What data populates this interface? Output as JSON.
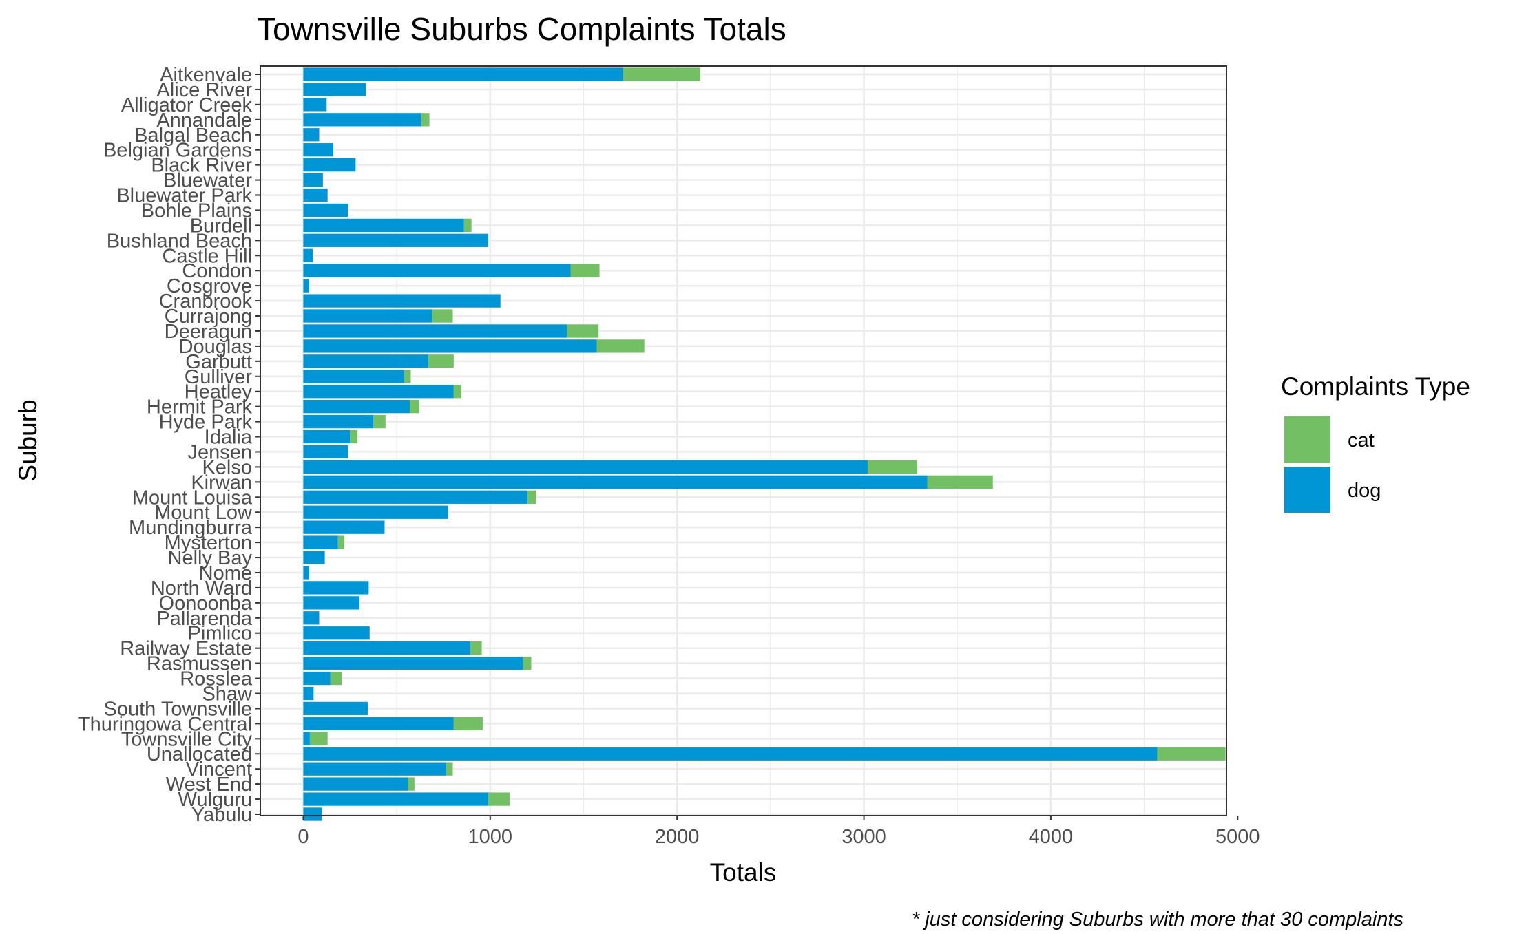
{
  "chart_data": {
    "type": "bar",
    "orientation": "horizontal",
    "stacked": true,
    "title": "Townsville Suburbs Complaints Totals",
    "xlabel": "Totals",
    "ylabel": "Suburb",
    "xlim": [
      -230,
      4940
    ],
    "xticks": [
      0,
      1000,
      2000,
      3000,
      4000,
      5000
    ],
    "grid": true,
    "legend": {
      "title": "Complaints Type",
      "placement": "right"
    },
    "caption": "* just considering Suburbs with more that 30 complaints",
    "categories": [
      "Aitkenvale",
      "Alice River",
      "Alligator Creek",
      "Annandale",
      "Balgal Beach",
      "Belgian Gardens",
      "Black River",
      "Bluewater",
      "Bluewater Park",
      "Bohle Plains",
      "Burdell",
      "Bushland Beach",
      "Castle Hill",
      "Condon",
      "Cosgrove",
      "Cranbrook",
      "Currajong",
      "Deeragun",
      "Douglas",
      "Garbutt",
      "Gulliver",
      "Heatley",
      "Hermit Park",
      "Hyde Park",
      "Idalia",
      "Jensen",
      "Kelso",
      "Kirwan",
      "Mount Louisa",
      "Mount Low",
      "Mundingburra",
      "Mysterton",
      "Nelly Bay",
      "Nome",
      "North Ward",
      "Oonoonba",
      "Pallarenda",
      "Pimlico",
      "Railway Estate",
      "Rasmussen",
      "Rosslea",
      "Shaw",
      "South Townsville",
      "Thuringowa Central",
      "Townsville City",
      "Unallocated",
      "Vincent",
      "West End",
      "Wulguru",
      "Yabulu"
    ],
    "series": [
      {
        "name": "dog",
        "color": "#0096D6",
        "values": [
          1710,
          335,
          125,
          630,
          85,
          160,
          280,
          105,
          130,
          240,
          860,
          990,
          50,
          1430,
          30,
          1055,
          690,
          1410,
          1570,
          670,
          540,
          805,
          570,
          375,
          250,
          240,
          3020,
          3340,
          1200,
          775,
          435,
          185,
          115,
          30,
          350,
          300,
          85,
          355,
          895,
          1175,
          145,
          55,
          345,
          805,
          35,
          4570,
          765,
          560,
          990,
          100
        ]
      },
      {
        "name": "cat",
        "color": "#73C064",
        "values": [
          415,
          0,
          0,
          45,
          0,
          0,
          0,
          0,
          0,
          0,
          40,
          0,
          0,
          155,
          0,
          0,
          110,
          170,
          255,
          135,
          35,
          40,
          50,
          65,
          40,
          0,
          265,
          350,
          45,
          0,
          0,
          35,
          0,
          0,
          0,
          0,
          0,
          0,
          60,
          45,
          60,
          0,
          0,
          155,
          95,
          365,
          35,
          35,
          115,
          0
        ]
      }
    ]
  }
}
